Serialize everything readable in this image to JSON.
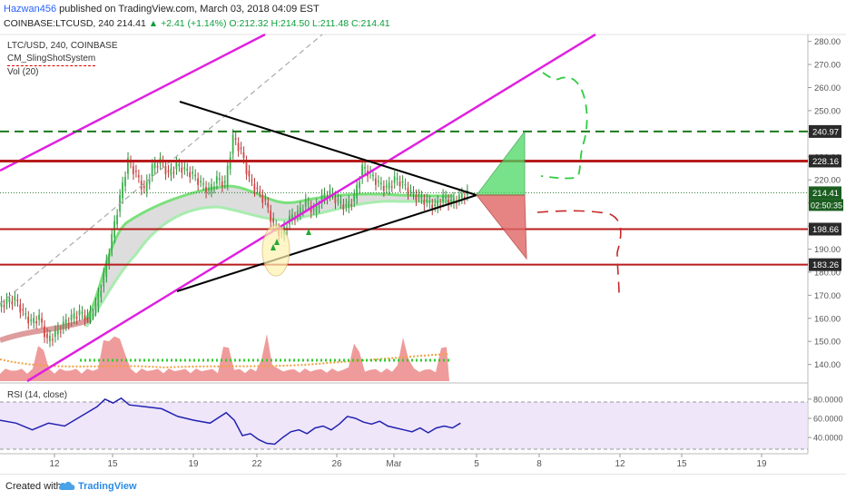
{
  "header": {
    "author": "Hazwan456",
    "published_text": "published on TradingView.com, March 03, 2018 04:09 EST",
    "symbol_line": "COINBASE:LTCUSD, 240",
    "last": "214.41",
    "change": "+2.41 (+1.14%)",
    "ohlc": "O:212.32 H:214.50 L:211.48 C:214.41"
  },
  "legend": {
    "title": "LTC/USD, 240, COINBASE",
    "indicator1": "CM_SlingShotSystem",
    "indicator2": "Vol (20)"
  },
  "rsi": {
    "label": "RSI (14, close)",
    "ticks": [
      "80.0000",
      "60.0000",
      "40.0000"
    ]
  },
  "footer": {
    "made_with": "Created with",
    "brand": "TradingView"
  },
  "colors": {
    "up": "#26a69a",
    "down": "#ef5350",
    "resistance": "#b71c1c",
    "channel": "#e020e0",
    "triangle": "#000000",
    "dashed_green": "#1b7a1b",
    "rsi_line": "#2323b0",
    "price_tag": "#2a2a2a"
  },
  "chart_data": {
    "type": "candlestick",
    "y_range": [
      132,
      283
    ],
    "y_ticks": [
      280,
      270,
      260,
      250,
      240,
      230,
      220,
      210,
      200,
      190,
      180,
      170,
      160,
      150,
      140
    ],
    "x_ticks": [
      "12",
      "15",
      "19",
      "22",
      "26",
      "Mar",
      "5",
      "8",
      "12",
      "15",
      "19"
    ],
    "price_levels": [
      {
        "value": 240.97,
        "label": "240.97",
        "style": "dashed-green"
      },
      {
        "value": 228.16,
        "label": "228.16",
        "style": "red"
      },
      {
        "value": 214.41,
        "label": "214.41",
        "style": "last-price"
      },
      {
        "value": 198.66,
        "label": "198.66",
        "style": "red"
      },
      {
        "value": 183.26,
        "label": "183.26",
        "style": "red"
      }
    ],
    "countdown": "02:50:35",
    "price_path": [
      [
        0,
        167
      ],
      [
        0.01,
        168
      ],
      [
        0.02,
        162
      ],
      [
        0.03,
        158
      ],
      [
        0.04,
        160
      ],
      [
        0.05,
        150
      ],
      [
        0.06,
        153
      ],
      [
        0.07,
        157
      ],
      [
        0.08,
        160
      ],
      [
        0.09,
        162
      ],
      [
        0.1,
        160
      ],
      [
        0.11,
        165
      ],
      [
        0.12,
        178
      ],
      [
        0.13,
        195
      ],
      [
        0.14,
        212
      ],
      [
        0.15,
        228
      ],
      [
        0.16,
        222
      ],
      [
        0.17,
        215
      ],
      [
        0.18,
        225
      ],
      [
        0.19,
        228
      ],
      [
        0.2,
        222
      ],
      [
        0.21,
        226
      ],
      [
        0.22,
        224
      ],
      [
        0.23,
        222
      ],
      [
        0.24,
        218
      ],
      [
        0.25,
        215
      ],
      [
        0.26,
        220
      ],
      [
        0.27,
        218
      ],
      [
        0.28,
        238
      ],
      [
        0.29,
        232
      ],
      [
        0.3,
        220
      ],
      [
        0.31,
        215
      ],
      [
        0.32,
        210
      ],
      [
        0.33,
        200
      ],
      [
        0.34,
        196
      ],
      [
        0.35,
        203
      ],
      [
        0.36,
        205
      ],
      [
        0.37,
        210
      ],
      [
        0.38,
        206
      ],
      [
        0.39,
        212
      ],
      [
        0.4,
        214
      ],
      [
        0.41,
        210
      ],
      [
        0.42,
        208
      ],
      [
        0.43,
        212
      ],
      [
        0.44,
        225
      ],
      [
        0.45,
        222
      ],
      [
        0.46,
        218
      ],
      [
        0.47,
        216
      ],
      [
        0.48,
        220
      ],
      [
        0.49,
        218
      ],
      [
        0.5,
        214
      ],
      [
        0.51,
        212
      ],
      [
        0.52,
        210
      ],
      [
        0.53,
        208
      ],
      [
        0.54,
        212
      ],
      [
        0.55,
        210
      ],
      [
        0.56,
        212
      ],
      [
        0.57,
        214
      ]
    ],
    "rsi_path": [
      [
        0,
        58
      ],
      [
        0.02,
        55
      ],
      [
        0.04,
        48
      ],
      [
        0.06,
        55
      ],
      [
        0.08,
        52
      ],
      [
        0.1,
        62
      ],
      [
        0.12,
        72
      ],
      [
        0.13,
        80
      ],
      [
        0.14,
        76
      ],
      [
        0.15,
        81
      ],
      [
        0.16,
        74
      ],
      [
        0.18,
        72
      ],
      [
        0.2,
        70
      ],
      [
        0.22,
        62
      ],
      [
        0.24,
        58
      ],
      [
        0.26,
        55
      ],
      [
        0.28,
        66
      ],
      [
        0.29,
        58
      ],
      [
        0.3,
        42
      ],
      [
        0.31,
        44
      ],
      [
        0.32,
        38
      ],
      [
        0.33,
        34
      ],
      [
        0.34,
        33
      ],
      [
        0.35,
        40
      ],
      [
        0.36,
        46
      ],
      [
        0.37,
        48
      ],
      [
        0.38,
        44
      ],
      [
        0.39,
        50
      ],
      [
        0.4,
        52
      ],
      [
        0.41,
        48
      ],
      [
        0.42,
        54
      ],
      [
        0.43,
        62
      ],
      [
        0.44,
        60
      ],
      [
        0.45,
        56
      ],
      [
        0.46,
        54
      ],
      [
        0.47,
        57
      ],
      [
        0.48,
        52
      ],
      [
        0.49,
        50
      ],
      [
        0.5,
        48
      ],
      [
        0.51,
        46
      ],
      [
        0.52,
        50
      ],
      [
        0.53,
        45
      ],
      [
        0.54,
        50
      ],
      [
        0.55,
        52
      ],
      [
        0.56,
        50
      ],
      [
        0.57,
        55
      ]
    ],
    "volume_spikes": [
      0.05,
      0.13,
      0.14,
      0.15,
      0.28,
      0.33,
      0.44,
      0.5,
      0.55,
      0.565
    ],
    "rsi_range": [
      25,
      95
    ]
  }
}
